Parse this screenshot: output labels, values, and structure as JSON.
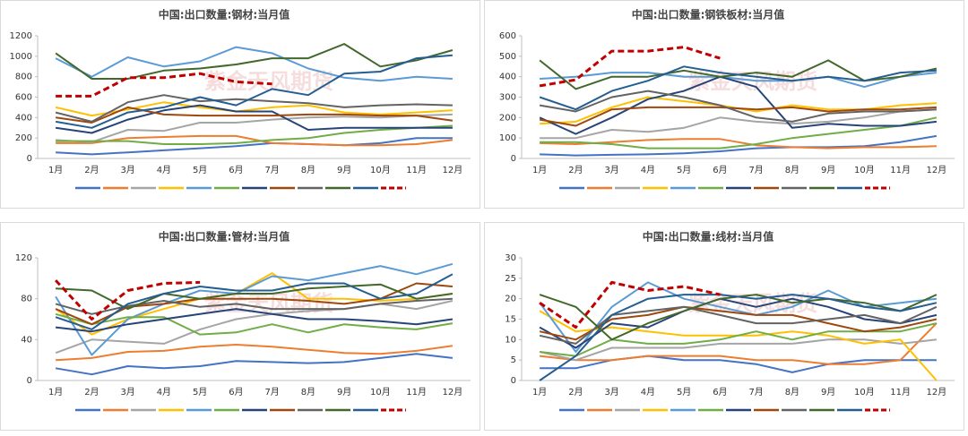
{
  "chart_data": [
    {
      "type": "line",
      "title": "中国:出口数量:钢材:当月值",
      "watermark": "紫金天风期货",
      "categories": [
        "1月",
        "2月",
        "3月",
        "4月",
        "5月",
        "6月",
        "7月",
        "8月",
        "9月",
        "10月",
        "11月",
        "12月"
      ],
      "ylim": [
        0,
        1200
      ],
      "yticks": [
        0,
        200,
        400,
        600,
        800,
        1000,
        1200
      ],
      "series": [
        {
          "color": "#4472c4",
          "values": [
            60,
            40,
            60,
            80,
            100,
            120,
            150,
            140,
            130,
            150,
            200,
            200
          ]
        },
        {
          "color": "#ed7d31",
          "values": [
            150,
            150,
            200,
            210,
            220,
            220,
            150,
            140,
            130,
            130,
            140,
            180
          ]
        },
        {
          "color": "#a5a5a5",
          "values": [
            180,
            160,
            280,
            270,
            350,
            350,
            380,
            400,
            410,
            400,
            420,
            430
          ]
        },
        {
          "color": "#ffc000",
          "values": [
            500,
            420,
            480,
            550,
            500,
            460,
            500,
            520,
            450,
            430,
            450,
            470
          ]
        },
        {
          "color": "#5b9bd5",
          "values": [
            980,
            800,
            990,
            900,
            950,
            1090,
            1030,
            880,
            790,
            760,
            800,
            780
          ]
        },
        {
          "color": "#70ad47",
          "values": [
            170,
            170,
            170,
            140,
            140,
            150,
            180,
            200,
            250,
            280,
            300,
            320
          ]
        },
        {
          "color": "#264478",
          "values": [
            300,
            250,
            380,
            470,
            520,
            460,
            460,
            280,
            300,
            300,
            300,
            300
          ]
        },
        {
          "color": "#9e480e",
          "values": [
            400,
            350,
            500,
            430,
            420,
            420,
            420,
            430,
            430,
            420,
            420,
            370
          ]
        },
        {
          "color": "#636363",
          "values": [
            450,
            360,
            550,
            620,
            560,
            580,
            560,
            540,
            500,
            520,
            530,
            520
          ]
        },
        {
          "color": "#43682b",
          "values": [
            1030,
            780,
            780,
            860,
            880,
            920,
            980,
            980,
            1120,
            900,
            960,
            1060
          ]
        },
        {
          "color": "#255e91",
          "values": [
            360,
            300,
            450,
            500,
            600,
            520,
            680,
            620,
            830,
            850,
            980,
            1010
          ]
        },
        {
          "color": "#c00000",
          "dashed": true,
          "values": [
            610,
            610,
            790,
            790,
            830,
            750,
            730,
            null,
            null,
            null,
            null,
            null
          ]
        }
      ]
    },
    {
      "type": "line",
      "title": "中国:出口数量:钢铁板材:当月值",
      "watermark": "紫金天风期货",
      "categories": [
        "1月",
        "2月",
        "3月",
        "4月",
        "5月",
        "6月",
        "7月",
        "8月",
        "9月",
        "10月",
        "11月",
        "12月"
      ],
      "ylim": [
        0,
        600
      ],
      "yticks": [
        0,
        100,
        200,
        300,
        400,
        500,
        600
      ],
      "series": [
        {
          "color": "#4472c4",
          "values": [
            20,
            15,
            18,
            20,
            25,
            35,
            50,
            55,
            55,
            60,
            80,
            110
          ]
        },
        {
          "color": "#ed7d31",
          "values": [
            75,
            70,
            80,
            90,
            95,
            95,
            65,
            55,
            50,
            55,
            55,
            60
          ]
        },
        {
          "color": "#a5a5a5",
          "values": [
            100,
            100,
            140,
            130,
            150,
            200,
            180,
            170,
            180,
            200,
            230,
            240
          ]
        },
        {
          "color": "#ffc000",
          "values": [
            170,
            180,
            250,
            300,
            280,
            260,
            230,
            260,
            240,
            240,
            260,
            270
          ]
        },
        {
          "color": "#5b9bd5",
          "values": [
            390,
            400,
            420,
            420,
            400,
            400,
            380,
            380,
            400,
            350,
            400,
            420
          ]
        },
        {
          "color": "#70ad47",
          "values": [
            80,
            80,
            70,
            50,
            50,
            50,
            70,
            100,
            120,
            140,
            160,
            200
          ]
        },
        {
          "color": "#264478",
          "values": [
            200,
            120,
            200,
            290,
            330,
            400,
            350,
            150,
            170,
            160,
            160,
            180
          ]
        },
        {
          "color": "#9e480e",
          "values": [
            190,
            160,
            240,
            250,
            250,
            250,
            240,
            250,
            230,
            240,
            240,
            250
          ]
        },
        {
          "color": "#636363",
          "values": [
            260,
            230,
            300,
            330,
            300,
            260,
            200,
            180,
            220,
            230,
            230,
            240
          ]
        },
        {
          "color": "#43682b",
          "values": [
            480,
            340,
            400,
            400,
            430,
            400,
            420,
            400,
            480,
            380,
            400,
            440
          ]
        },
        {
          "color": "#255e91",
          "values": [
            300,
            240,
            330,
            380,
            450,
            420,
            400,
            380,
            400,
            380,
            420,
            430
          ]
        },
        {
          "color": "#c00000",
          "dashed": true,
          "values": [
            355,
            385,
            525,
            525,
            545,
            490,
            null,
            null,
            null,
            null,
            null,
            null
          ]
        }
      ]
    },
    {
      "type": "line",
      "title": "中国:出口数量:管材:当月值",
      "watermark": "紫金天风期货",
      "categories": [
        "1月",
        "2月",
        "3月",
        "4月",
        "5月",
        "6月",
        "7月",
        "8月",
        "9月",
        "10月",
        "11月",
        "12月"
      ],
      "ylim": [
        0,
        120
      ],
      "yticks": [
        0,
        40,
        80,
        120
      ],
      "series": [
        {
          "color": "#4472c4",
          "values": [
            12,
            6,
            14,
            12,
            14,
            19,
            18,
            17,
            18,
            22,
            26,
            22
          ]
        },
        {
          "color": "#ed7d31",
          "values": [
            20,
            22,
            28,
            29,
            33,
            35,
            33,
            30,
            27,
            26,
            29,
            34
          ]
        },
        {
          "color": "#a5a5a5",
          "values": [
            27,
            40,
            38,
            36,
            50,
            60,
            65,
            68,
            70,
            75,
            70,
            78
          ]
        },
        {
          "color": "#ffc000",
          "values": [
            70,
            45,
            60,
            70,
            80,
            85,
            105,
            80,
            80,
            78,
            80,
            85
          ]
        },
        {
          "color": "#5b9bd5",
          "values": [
            82,
            25,
            60,
            75,
            88,
            85,
            102,
            98,
            105,
            112,
            104,
            114
          ]
        },
        {
          "color": "#70ad47",
          "values": [
            65,
            55,
            62,
            62,
            45,
            47,
            55,
            47,
            55,
            52,
            50,
            56
          ]
        },
        {
          "color": "#264478",
          "values": [
            52,
            48,
            55,
            60,
            65,
            70,
            65,
            60,
            60,
            58,
            55,
            60
          ]
        },
        {
          "color": "#9e480e",
          "values": [
            70,
            55,
            72,
            75,
            80,
            80,
            80,
            78,
            75,
            80,
            95,
            92
          ]
        },
        {
          "color": "#636363",
          "values": [
            75,
            65,
            73,
            78,
            72,
            75,
            70,
            70,
            70,
            75,
            78,
            80
          ]
        },
        {
          "color": "#43682b",
          "values": [
            90,
            88,
            70,
            85,
            80,
            85,
            85,
            90,
            92,
            94,
            80,
            85
          ]
        },
        {
          "color": "#255e91",
          "values": [
            62,
            50,
            75,
            85,
            92,
            88,
            88,
            95,
            95,
            80,
            85,
            104
          ]
        },
        {
          "color": "#c00000",
          "dashed": true,
          "values": [
            98,
            60,
            88,
            95,
            96,
            null,
            null,
            null,
            null,
            null,
            null,
            null
          ]
        }
      ]
    },
    {
      "type": "line",
      "title": "中国:出口数量:线材:当月值",
      "watermark": "紫金天风期货",
      "categories": [
        "1月",
        "2月",
        "3月",
        "4月",
        "5月",
        "6月",
        "7月",
        "8月",
        "9月",
        "10月",
        "11月",
        "12月"
      ],
      "ylim": [
        0,
        30
      ],
      "yticks": [
        0,
        5,
        10,
        15,
        20,
        25,
        30
      ],
      "series": [
        {
          "color": "#4472c4",
          "values": [
            3,
            3,
            5,
            6,
            5,
            5,
            4,
            2,
            4,
            5,
            5,
            5
          ]
        },
        {
          "color": "#ed7d31",
          "values": [
            6,
            5,
            5,
            6,
            6,
            6,
            5,
            5,
            4,
            4,
            5,
            14
          ]
        },
        {
          "color": "#a5a5a5",
          "values": [
            7,
            5,
            8,
            8,
            8,
            9,
            9,
            9,
            10,
            10,
            9,
            10
          ]
        },
        {
          "color": "#ffc000",
          "values": [
            17,
            12,
            13,
            12,
            11,
            11,
            11,
            12,
            11,
            9,
            10,
            0
          ]
        },
        {
          "color": "#5b9bd5",
          "values": [
            19,
            7,
            18,
            24,
            20,
            18,
            16,
            18,
            22,
            18,
            19,
            20
          ]
        },
        {
          "color": "#70ad47",
          "values": [
            7,
            6,
            10,
            9,
            9,
            10,
            12,
            10,
            12,
            12,
            12,
            14
          ]
        },
        {
          "color": "#264478",
          "values": [
            13,
            8,
            14,
            13,
            17,
            20,
            18,
            20,
            18,
            15,
            14,
            16
          ]
        },
        {
          "color": "#9e480e",
          "values": [
            12,
            10,
            15,
            16,
            18,
            17,
            16,
            16,
            14,
            12,
            13,
            15
          ]
        },
        {
          "color": "#636363",
          "values": [
            11,
            9,
            16,
            17,
            18,
            16,
            14,
            14,
            15,
            16,
            14,
            18
          ]
        },
        {
          "color": "#43682b",
          "values": [
            21,
            18,
            10,
            14,
            17,
            20,
            21,
            19,
            20,
            19,
            17,
            21
          ]
        },
        {
          "color": "#255e91",
          "values": [
            0,
            6,
            16,
            20,
            21,
            21,
            20,
            21,
            20,
            18,
            17,
            19
          ]
        },
        {
          "color": "#c00000",
          "dashed": true,
          "values": [
            19,
            13,
            24,
            22,
            23,
            21,
            null,
            null,
            null,
            null,
            null,
            null
          ]
        }
      ]
    }
  ]
}
